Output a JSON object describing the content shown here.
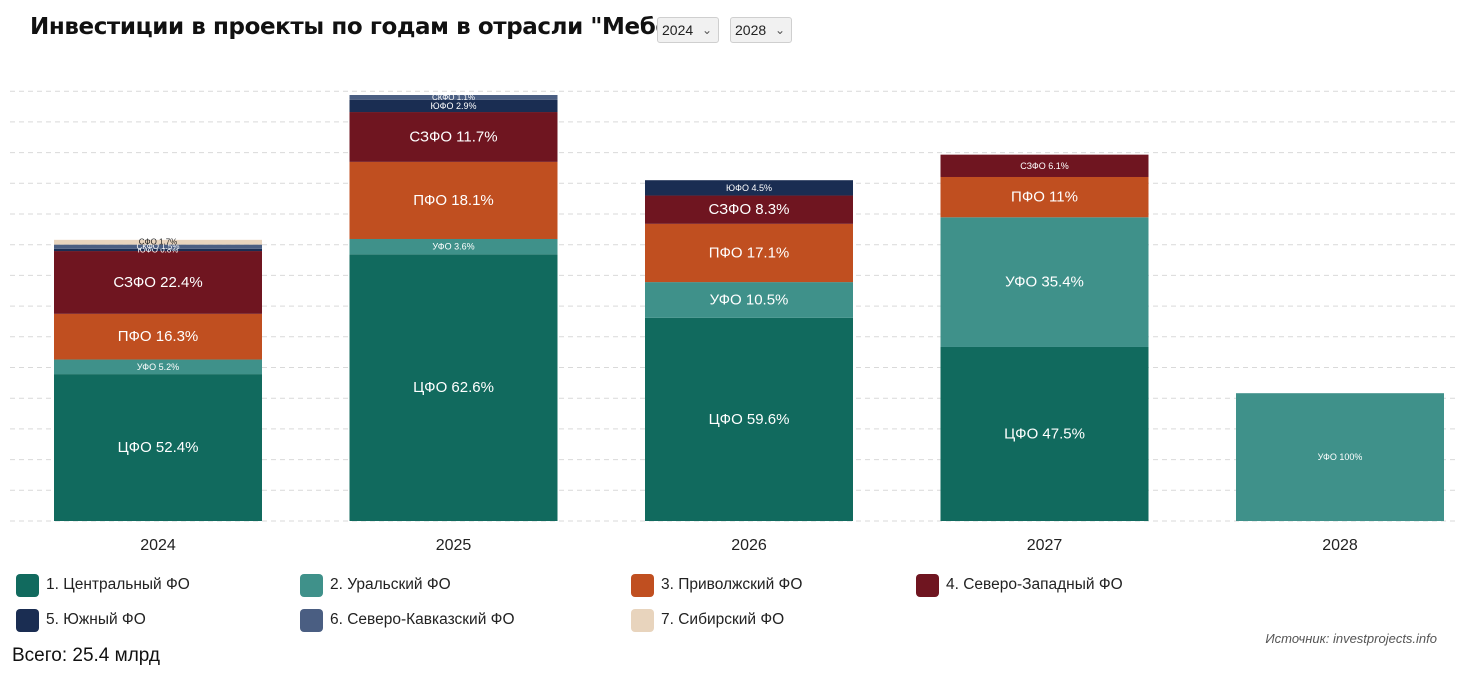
{
  "title": "Инвестиции в проекты по годам в отрасли \"Мебель\"",
  "filters": {
    "year_from": "2024",
    "year_to": "2028"
  },
  "total_text": "Всего: 25.4 млрд",
  "source_text": "Источник: investprojects.info",
  "chart_data": {
    "type": "bar",
    "stacked": true,
    "categories": [
      "2024",
      "2025",
      "2026",
      "2027",
      "2028"
    ],
    "bar_totals_relative": [
      0.66,
      1.0,
      0.8,
      0.86,
      0.3
    ],
    "grid": true,
    "grid_style": "dashed",
    "legend_position": "bottom",
    "series": [
      {
        "key": "cfo",
        "name": "1. Центральный ФО",
        "short": "ЦФО",
        "color": "#116a5e",
        "values": [
          52.4,
          62.6,
          59.6,
          47.5,
          0
        ]
      },
      {
        "key": "ufo",
        "name": "2. Уральский ФО",
        "short": "УФО",
        "color": "#3f918a",
        "values": [
          5.2,
          3.6,
          10.5,
          35.4,
          100
        ]
      },
      {
        "key": "pfo",
        "name": "3. Приволжский ФО",
        "short": "ПФО",
        "color": "#c04f20",
        "values": [
          16.3,
          18.1,
          17.1,
          11,
          0
        ]
      },
      {
        "key": "szfo",
        "name": "4. Северо-Западный ФО",
        "short": "СЗФО",
        "color": "#6f1520",
        "values": [
          22.4,
          11.7,
          8.3,
          6.1,
          0
        ]
      },
      {
        "key": "yufo",
        "name": "5. Южный ФО",
        "short": "ЮФО",
        "color": "#1a2d52",
        "values": [
          0.8,
          2.9,
          4.5,
          0,
          0
        ]
      },
      {
        "key": "skfo",
        "name": "6. Северо-Кавказский ФО",
        "short": "СКФО",
        "color": "#4a5e82",
        "values": [
          1.5,
          1.1,
          0,
          0,
          0
        ]
      },
      {
        "key": "sfo",
        "name": "7. Сибирский ФО",
        "short": "СФО",
        "color": "#e8d4bd",
        "values": [
          1.7,
          0,
          0,
          0,
          0
        ]
      }
    ]
  }
}
